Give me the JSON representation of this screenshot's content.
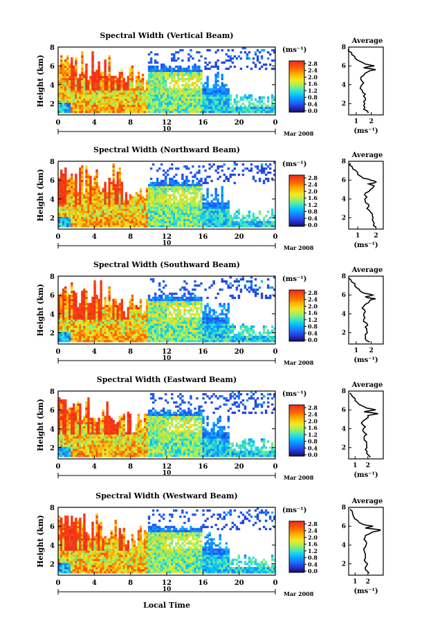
{
  "figure": {
    "xlabel_bottom": "Local Time",
    "date_label": "Mar 2008",
    "day_label": "10",
    "colorbar_unit": "(ms⁻¹)",
    "colorbar_ticks": [
      "2.8",
      "2.4",
      "2.0",
      "1.6",
      "1.2",
      "0.8",
      "0.4",
      "0.0"
    ],
    "profile_title": "Average",
    "profile_xlabel": "(ms⁻¹)"
  },
  "chart_data": [
    {
      "type": "heatmap",
      "title": "Spectral Width (Vertical Beam)",
      "xlabel": "Local Time",
      "ylabel": "Height (km)",
      "x_ticks": [
        "0",
        "4",
        "8",
        "12",
        "16",
        "20",
        "0"
      ],
      "y_ticks": [
        "2",
        "4",
        "6",
        "8"
      ],
      "xlim": [
        0,
        24
      ],
      "ylim": [
        0.8,
        8
      ],
      "zlim": [
        0,
        3.0
      ],
      "colorbar_ticks": [
        "2.8",
        "2.4",
        "2.0",
        "1.6",
        "1.2",
        "0.8",
        "0.4",
        "0.0"
      ],
      "profile": {
        "title": "Average",
        "x_ticks": [
          "1",
          "2"
        ],
        "y_ticks": [
          "2",
          "4",
          "6",
          "8"
        ],
        "xlim": [
          0.5,
          2.8
        ],
        "ylim": [
          0.8,
          8
        ],
        "heights": [
          1.0,
          1.4,
          1.8,
          2.2,
          2.6,
          3.0,
          3.4,
          3.8,
          4.2,
          4.6,
          5.0,
          5.4,
          5.6,
          5.8,
          6.0,
          6.2,
          6.6,
          7.0,
          7.4,
          7.8
        ],
        "values": [
          1.8,
          1.5,
          1.5,
          1.5,
          1.6,
          1.6,
          1.4,
          1.3,
          1.5,
          1.3,
          1.5,
          1.8,
          2.3,
          1.5,
          2.2,
          1.6,
          1.1,
          0.9,
          0.7,
          0.5
        ]
      }
    },
    {
      "type": "heatmap",
      "title": "Spectral Width (Northward Beam)",
      "xlabel": "Local Time",
      "ylabel": "Height (km)",
      "x_ticks": [
        "0",
        "4",
        "8",
        "12",
        "16",
        "20",
        "0"
      ],
      "y_ticks": [
        "2",
        "4",
        "6",
        "8"
      ],
      "xlim": [
        0,
        24
      ],
      "ylim": [
        0.8,
        8
      ],
      "zlim": [
        0,
        3.0
      ],
      "colorbar_ticks": [
        "2.8",
        "2.4",
        "2.0",
        "1.6",
        "1.2",
        "0.8",
        "0.4",
        "0.0"
      ],
      "profile": {
        "title": "Average",
        "x_ticks": [
          "1",
          "2"
        ],
        "y_ticks": [
          "2",
          "4",
          "6",
          "8"
        ],
        "xlim": [
          0.5,
          2.4
        ],
        "ylim": [
          0.8,
          8
        ],
        "heights": [
          1.0,
          1.4,
          1.8,
          2.2,
          2.6,
          3.0,
          3.4,
          3.8,
          4.2,
          4.6,
          5.0,
          5.4,
          5.6,
          5.8,
          6.0,
          6.2,
          6.6,
          7.0,
          7.4,
          7.8
        ],
        "values": [
          2.0,
          1.9,
          1.8,
          1.8,
          1.7,
          1.5,
          1.6,
          1.4,
          1.5,
          1.4,
          1.7,
          1.9,
          1.6,
          2.0,
          1.7,
          1.3,
          1.0,
          0.9,
          0.7,
          0.6
        ]
      }
    },
    {
      "type": "heatmap",
      "title": "Spectral Width (Southward Beam)",
      "xlabel": "Local Time",
      "ylabel": "Height (km)",
      "x_ticks": [
        "0",
        "4",
        "8",
        "12",
        "16",
        "20",
        "0"
      ],
      "y_ticks": [
        "2",
        "4",
        "6",
        "8"
      ],
      "xlim": [
        0,
        24
      ],
      "ylim": [
        0.8,
        8
      ],
      "zlim": [
        0,
        3.0
      ],
      "colorbar_ticks": [
        "2.8",
        "2.4",
        "2.0",
        "1.6",
        "1.2",
        "0.8",
        "0.4",
        "0.0"
      ],
      "profile": {
        "title": "Average",
        "x_ticks": [
          "1",
          "2"
        ],
        "y_ticks": [
          "2",
          "4",
          "6",
          "8"
        ],
        "xlim": [
          0.5,
          2.8
        ],
        "ylim": [
          0.8,
          8
        ],
        "heights": [
          1.0,
          1.4,
          1.8,
          2.2,
          2.6,
          3.0,
          3.4,
          3.8,
          4.2,
          4.6,
          5.0,
          5.4,
          5.6,
          5.8,
          6.0,
          6.2,
          6.6,
          7.0,
          7.4,
          7.8
        ],
        "values": [
          1.9,
          1.6,
          1.6,
          1.7,
          1.6,
          1.7,
          1.5,
          1.5,
          1.6,
          1.4,
          1.6,
          1.9,
          2.3,
          1.6,
          2.1,
          1.5,
          1.2,
          0.9,
          0.7,
          0.5
        ]
      }
    },
    {
      "type": "heatmap",
      "title": "Spectral Width (Eastward Beam)",
      "xlabel": "Local Time",
      "ylabel": "Height (km)",
      "x_ticks": [
        "0",
        "4",
        "8",
        "12",
        "16",
        "20",
        "0"
      ],
      "y_ticks": [
        "2",
        "4",
        "6",
        "8"
      ],
      "xlim": [
        0,
        24
      ],
      "ylim": [
        0.8,
        8
      ],
      "zlim": [
        0,
        3.0
      ],
      "colorbar_ticks": [
        "2.8",
        "2.4",
        "2.0",
        "1.6",
        "1.2",
        "0.8",
        "0.4",
        "0.0"
      ],
      "profile": {
        "title": "Average",
        "x_ticks": [
          "1",
          "2"
        ],
        "y_ticks": [
          "2",
          "4",
          "6",
          "8"
        ],
        "xlim": [
          0.5,
          3.2
        ],
        "ylim": [
          0.8,
          8
        ],
        "heights": [
          1.0,
          1.4,
          1.8,
          2.2,
          2.6,
          3.0,
          3.4,
          3.8,
          4.2,
          4.6,
          5.0,
          5.4,
          5.6,
          5.8,
          6.0,
          6.2,
          6.6,
          7.0,
          7.4,
          7.8
        ],
        "values": [
          2.2,
          1.9,
          1.8,
          1.9,
          1.9,
          1.7,
          1.9,
          1.6,
          1.8,
          1.5,
          1.8,
          2.0,
          2.8,
          1.7,
          2.6,
          1.9,
          1.3,
          1.0,
          0.8,
          0.6
        ]
      }
    },
    {
      "type": "heatmap",
      "title": "Spectral Width (Westward Beam)",
      "xlabel": "Local Time",
      "ylabel": "Height (km)",
      "x_ticks": [
        "0",
        "4",
        "8",
        "12",
        "16",
        "20",
        "0"
      ],
      "y_ticks": [
        "2",
        "4",
        "6",
        "8"
      ],
      "xlim": [
        0,
        24
      ],
      "ylim": [
        0.8,
        8
      ],
      "zlim": [
        0,
        3.0
      ],
      "colorbar_ticks": [
        "2.8",
        "2.4",
        "2.0",
        "1.6",
        "1.2",
        "0.8",
        "0.4",
        "0.0"
      ],
      "profile": {
        "title": "Average",
        "x_ticks": [
          "1",
          "2"
        ],
        "y_ticks": [
          "2",
          "4",
          "6",
          "8"
        ],
        "xlim": [
          0.5,
          3.2
        ],
        "ylim": [
          0.8,
          8
        ],
        "heights": [
          1.0,
          1.4,
          1.8,
          2.2,
          2.6,
          3.0,
          3.4,
          3.8,
          4.2,
          4.6,
          5.0,
          5.4,
          5.6,
          5.8,
          6.0,
          6.2,
          6.6,
          7.0,
          7.4,
          7.8
        ],
        "values": [
          2.1,
          1.8,
          1.9,
          1.8,
          1.8,
          1.8,
          1.7,
          1.8,
          1.9,
          1.7,
          1.8,
          2.4,
          3.0,
          1.8,
          2.4,
          1.6,
          1.2,
          0.9,
          0.8,
          0.6
        ]
      }
    }
  ]
}
